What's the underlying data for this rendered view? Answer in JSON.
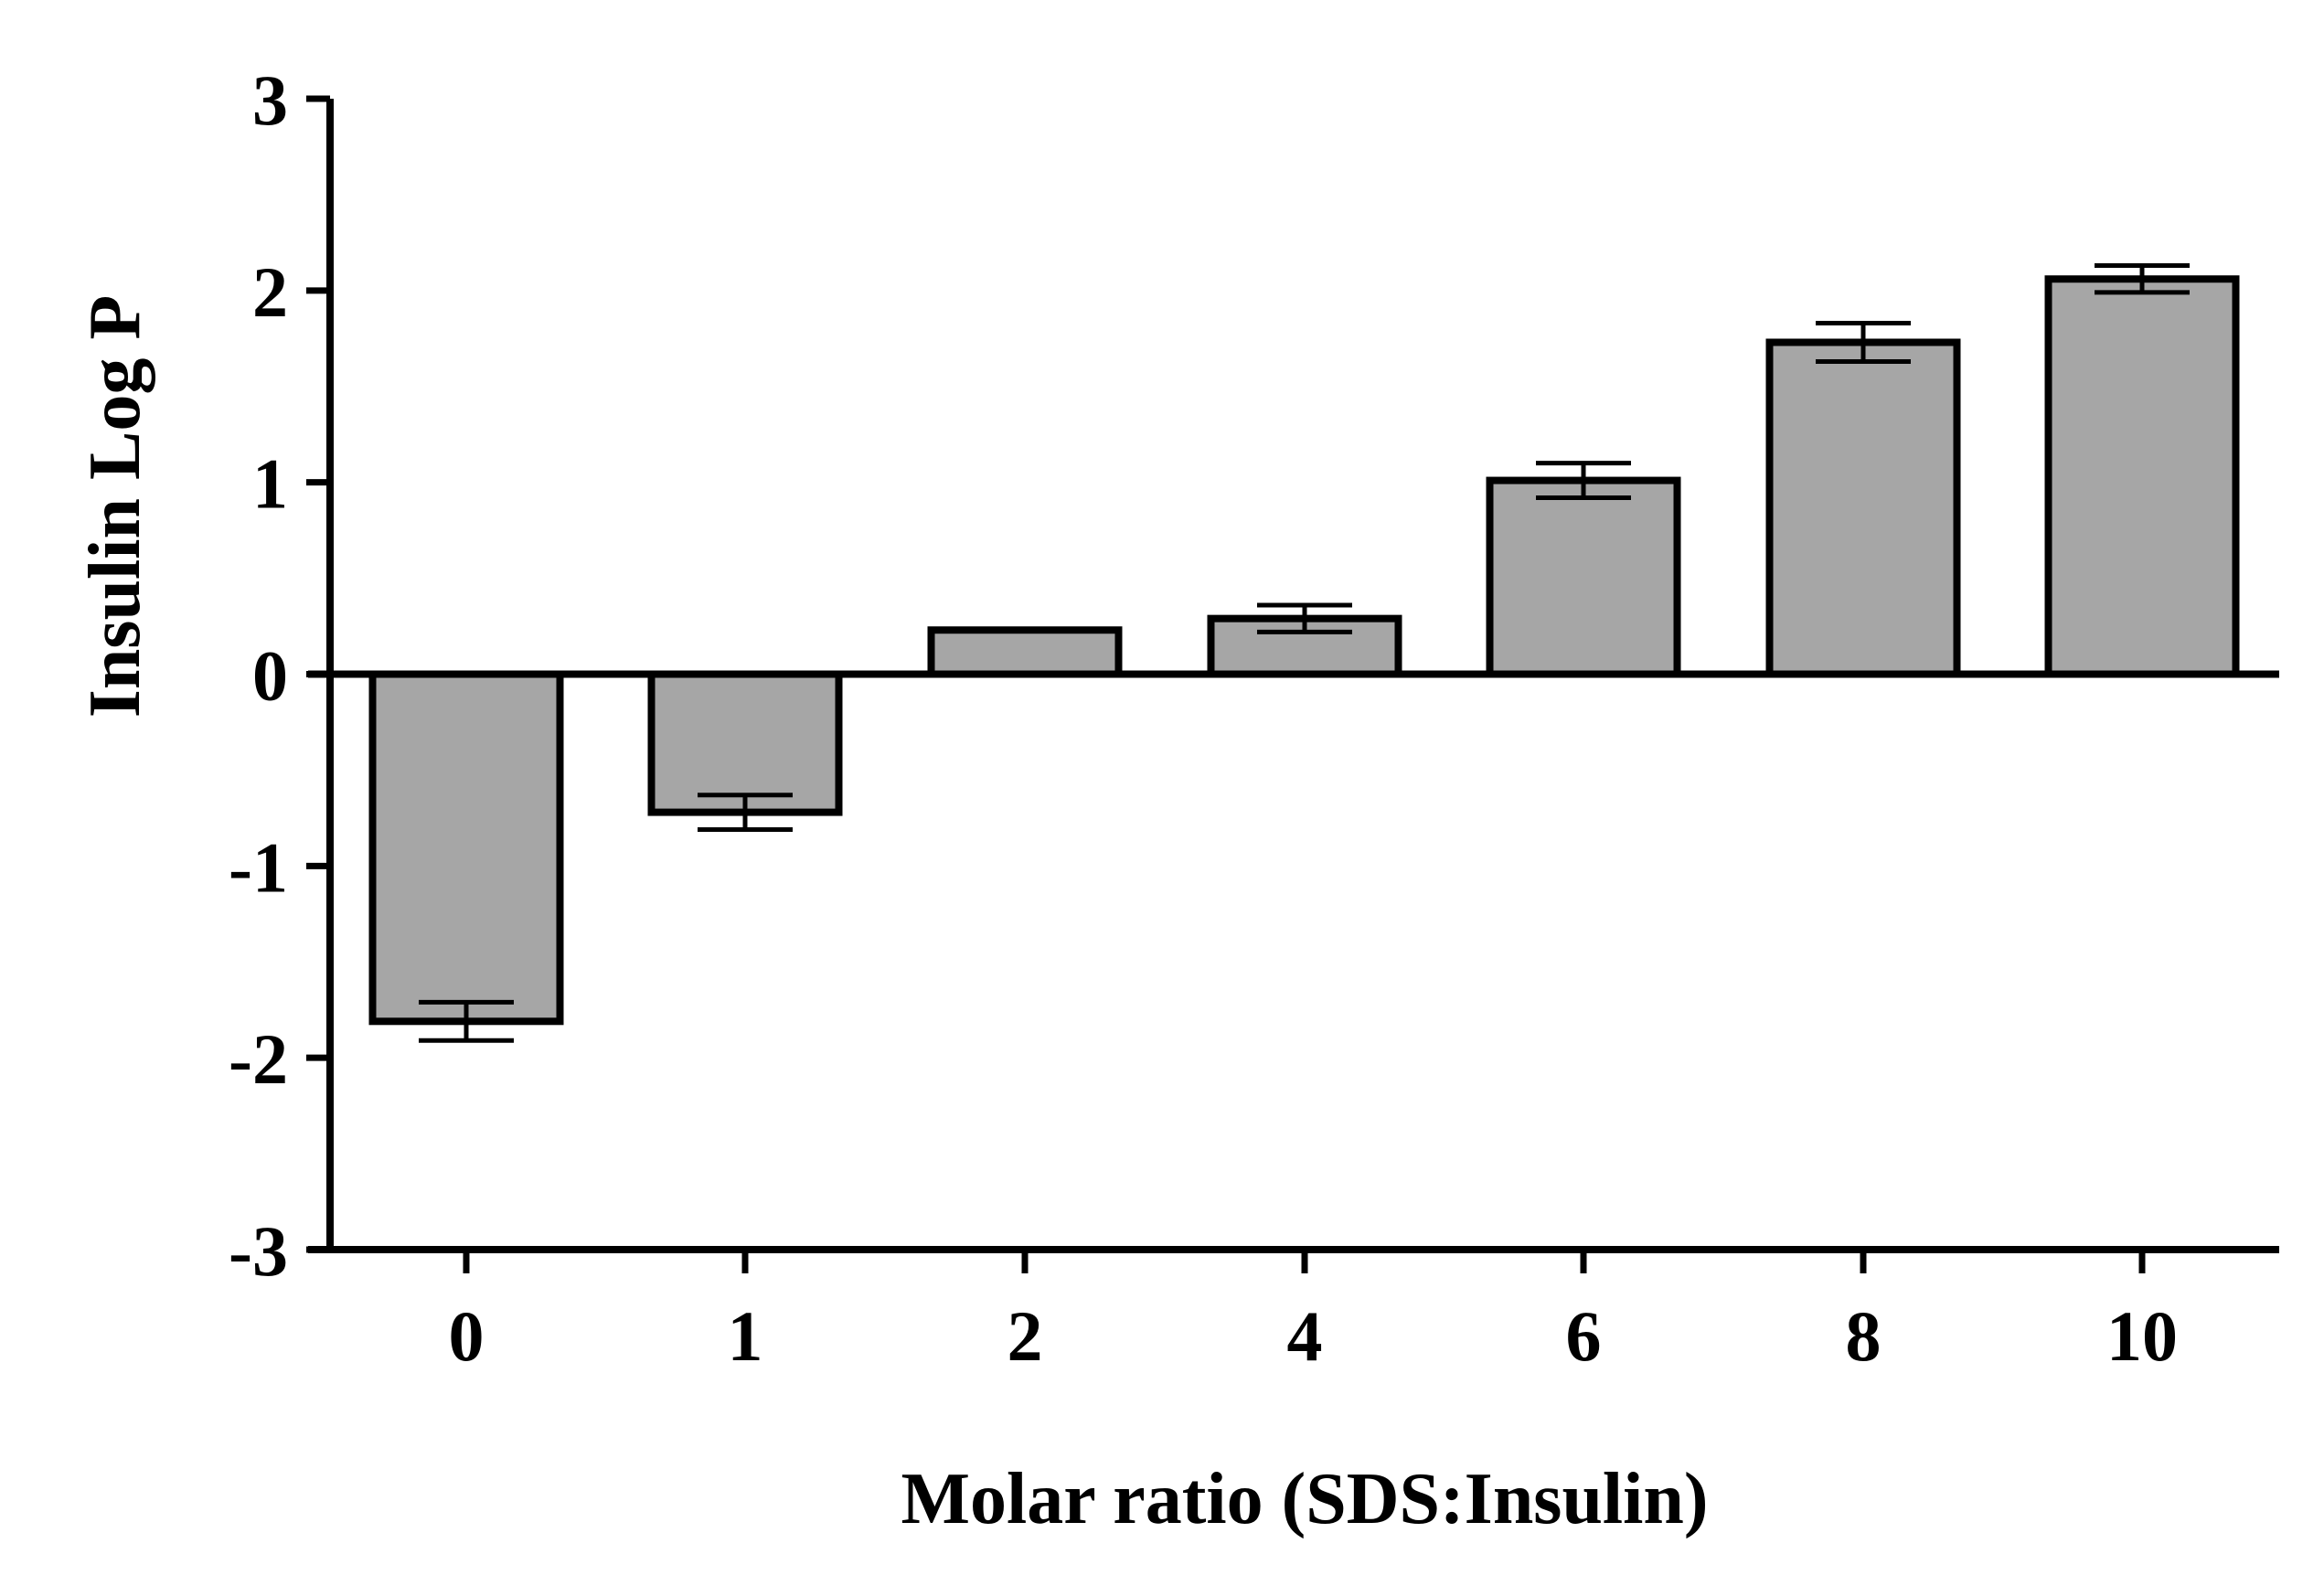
{
  "chart_data": {
    "type": "bar",
    "title": "",
    "xlabel": "Molar ratio (SDS:Insulin)",
    "ylabel": "Insulin Log P",
    "categories": [
      "0",
      "1",
      "2",
      "4",
      "6",
      "8",
      "10"
    ],
    "values": [
      -1.81,
      -0.72,
      0.23,
      0.29,
      1.01,
      1.73,
      2.06
    ],
    "errors": [
      0.1,
      0.09,
      0.0,
      0.07,
      0.09,
      0.1,
      0.07
    ],
    "ylim": [
      -3,
      3
    ],
    "yticks": [
      "-3",
      "-2",
      "-1",
      "0",
      "1",
      "2",
      "3"
    ],
    "bar_color": "#a6a6a6",
    "edge_color": "#000000",
    "grid": false,
    "legend": null
  }
}
